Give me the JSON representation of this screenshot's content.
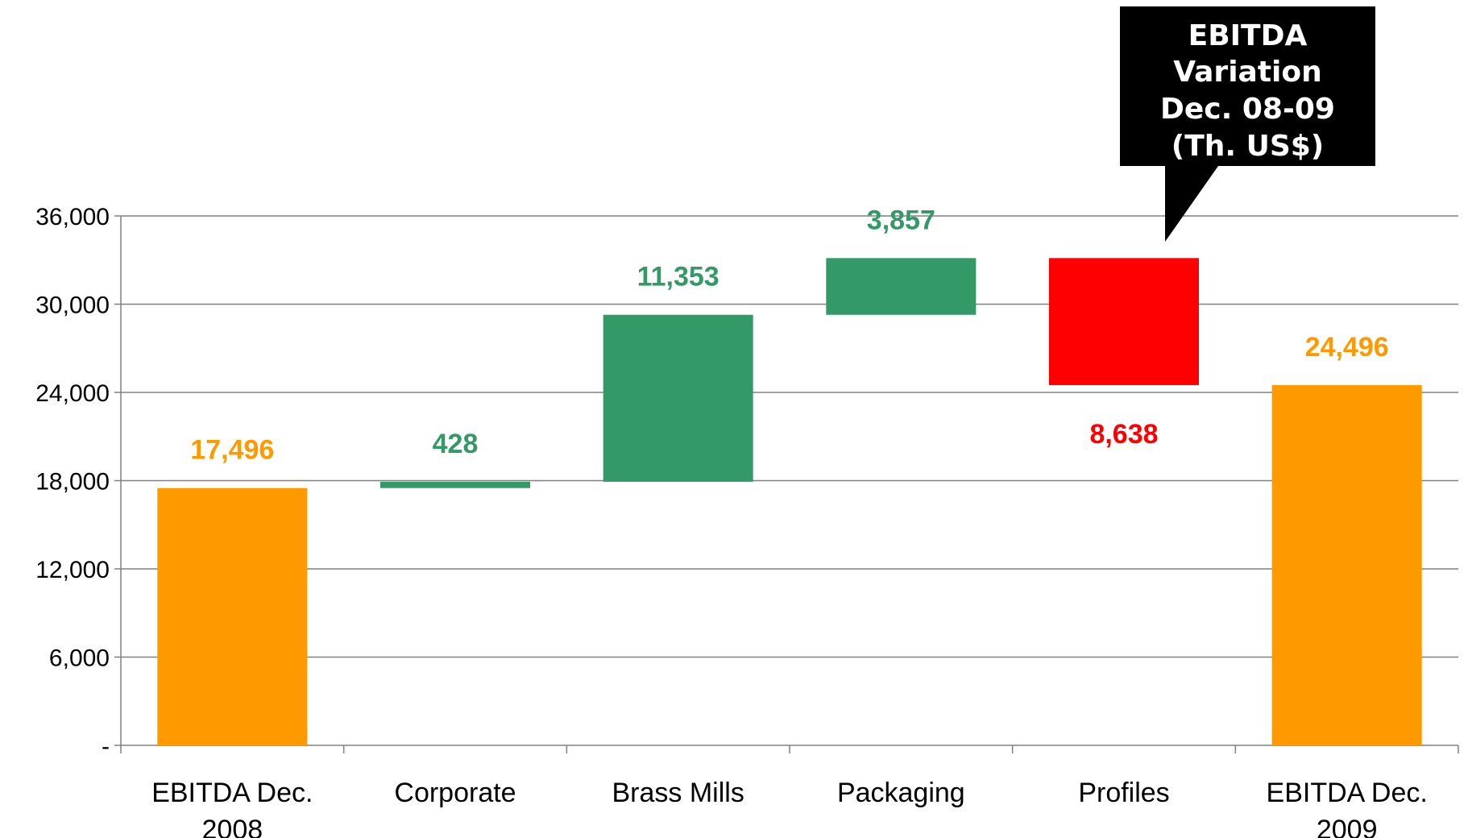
{
  "colors": {
    "total": "#FF9900",
    "increase": "#339966",
    "decrease": "#FF0000",
    "gridline": "#808080",
    "axis": "#808080",
    "callout_bg": "#000000",
    "callout_text": "#FFFFFF"
  },
  "callout": {
    "lines": [
      "EBITDA",
      "Variation",
      "Dec. 08-09",
      "(Th. US$)"
    ]
  },
  "chart_data": {
    "type": "bar",
    "subtype": "waterfall",
    "title": "",
    "xlabel": "",
    "ylabel": "",
    "ylim": [
      0,
      36000
    ],
    "y_ticks": [
      0,
      6000,
      12000,
      18000,
      24000,
      30000,
      36000
    ],
    "y_tick_labels": [
      "-",
      "6,000",
      "12,000",
      "18,000",
      "24,000",
      "30,000",
      "36,000"
    ],
    "grid": true,
    "legend": "none",
    "categories": [
      [
        "EBITDA Dec.",
        "2008"
      ],
      [
        "Corporate"
      ],
      [
        "Brass Mills"
      ],
      [
        "Packaging"
      ],
      [
        "Profiles"
      ],
      [
        "EBITDA Dec.",
        "2009"
      ]
    ],
    "bars": [
      {
        "kind": "total",
        "start": 0,
        "end": 17496,
        "label": "17,496"
      },
      {
        "kind": "increase",
        "start": 17496,
        "end": 17924,
        "label": "428"
      },
      {
        "kind": "increase",
        "start": 17924,
        "end": 29277,
        "label": "11,353"
      },
      {
        "kind": "increase",
        "start": 29277,
        "end": 33134,
        "label": "3,857"
      },
      {
        "kind": "decrease",
        "start": 33134,
        "end": 24496,
        "label": "8,638"
      },
      {
        "kind": "total",
        "start": 0,
        "end": 24496,
        "label": "24,496"
      }
    ]
  }
}
